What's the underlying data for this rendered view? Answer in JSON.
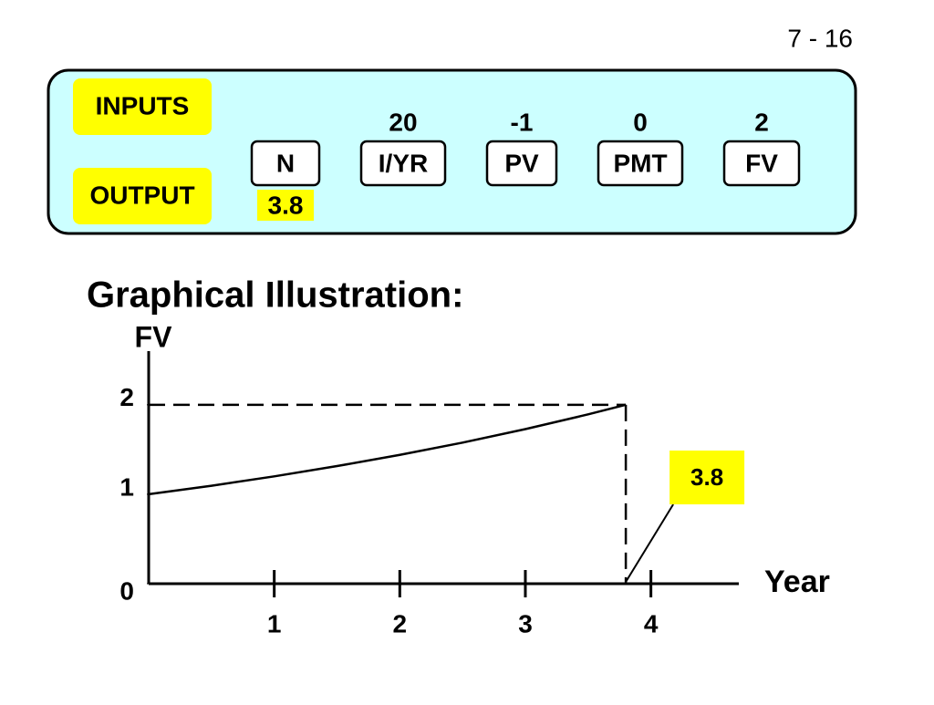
{
  "page_number": "7 - 16",
  "calculator": {
    "inputs_label": "INPUTS",
    "output_label": "OUTPUT",
    "keys": [
      {
        "label": "N",
        "output": "3.8"
      },
      {
        "label": "I/YR",
        "input": "20"
      },
      {
        "label": "PV",
        "input": "-1"
      },
      {
        "label": "PMT",
        "input": "0"
      },
      {
        "label": "FV",
        "input": "2"
      }
    ]
  },
  "chart_data": {
    "type": "line",
    "title": "Graphical Illustration:",
    "y_label": "FV",
    "x_label": "Year",
    "x": [
      0,
      0.5,
      1,
      1.5,
      2,
      2.5,
      3,
      3.5,
      3.8
    ],
    "series": [
      {
        "color": "#000000",
        "values": [
          1,
          1.095,
          1.2,
          1.315,
          1.44,
          1.577,
          1.728,
          1.893,
          2
        ]
      }
    ],
    "xlim": [
      0,
      4.7
    ],
    "ylim": [
      0,
      2.6
    ],
    "xticks": [
      1,
      2,
      3,
      4
    ],
    "yticks": [
      0,
      1,
      2
    ],
    "annotation": {
      "text": "3.8",
      "x": 3.8,
      "color": "#ffff00"
    }
  }
}
